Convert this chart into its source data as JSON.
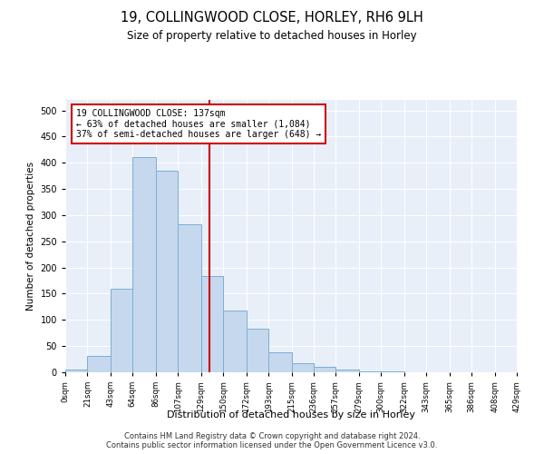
{
  "title_line1": "19, COLLINGWOOD CLOSE, HORLEY, RH6 9LH",
  "title_line2": "Size of property relative to detached houses in Horley",
  "xlabel": "Distribution of detached houses by size in Horley",
  "ylabel": "Number of detached properties",
  "bin_labels": [
    "0sqm",
    "21sqm",
    "43sqm",
    "64sqm",
    "86sqm",
    "107sqm",
    "129sqm",
    "150sqm",
    "172sqm",
    "193sqm",
    "215sqm",
    "236sqm",
    "257sqm",
    "279sqm",
    "300sqm",
    "322sqm",
    "343sqm",
    "365sqm",
    "386sqm",
    "408sqm",
    "429sqm"
  ],
  "bar_values": [
    5,
    32,
    160,
    410,
    385,
    283,
    183,
    118,
    83,
    38,
    17,
    10,
    5,
    2,
    1,
    0,
    0,
    0,
    0,
    0
  ],
  "bar_color": "#c5d8ee",
  "bar_edge_color": "#7bafd4",
  "vline_x": 137,
  "vline_color": "#cc0000",
  "annotation_text": "19 COLLINGWOOD CLOSE: 137sqm\n← 63% of detached houses are smaller (1,084)\n37% of semi-detached houses are larger (648) →",
  "annotation_box_color": "#ffffff",
  "annotation_box_edge": "#cc0000",
  "ylim": [
    0,
    520
  ],
  "yticks": [
    0,
    50,
    100,
    150,
    200,
    250,
    300,
    350,
    400,
    450,
    500
  ],
  "bin_edges": [
    0,
    21,
    43,
    64,
    86,
    107,
    129,
    150,
    172,
    193,
    215,
    236,
    257,
    279,
    300,
    322,
    343,
    365,
    386,
    408,
    429
  ],
  "footer_line1": "Contains HM Land Registry data © Crown copyright and database right 2024.",
  "footer_line2": "Contains public sector information licensed under the Open Government Licence v3.0.",
  "bg_color": "#ffffff",
  "plot_bg_color": "#e8eff8"
}
